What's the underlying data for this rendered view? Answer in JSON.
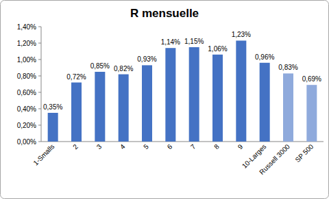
{
  "chart_data": {
    "type": "bar",
    "title": "R mensuelle",
    "categories": [
      "1-Smalls",
      "2",
      "3",
      "4",
      "5",
      "6",
      "7",
      "8",
      "9",
      "10-Larges",
      "Russell 3000",
      "SP 500"
    ],
    "values": [
      0.35,
      0.72,
      0.85,
      0.82,
      0.93,
      1.14,
      1.15,
      1.06,
      1.23,
      0.96,
      0.83,
      0.69
    ],
    "value_labels": [
      "0,35%",
      "0,72%",
      "0,85%",
      "0,82%",
      "0,93%",
      "1,14%",
      "1,15%",
      "1,06%",
      "1,23%",
      "0,96%",
      "0,83%",
      "0,69%"
    ],
    "colors": [
      "#4472c4",
      "#4472c4",
      "#4472c4",
      "#4472c4",
      "#4472c4",
      "#4472c4",
      "#4472c4",
      "#4472c4",
      "#4472c4",
      "#4472c4",
      "#8faadc",
      "#8faadc"
    ],
    "ylim": [
      0,
      1.4
    ],
    "yticks": [
      {
        "value": 0,
        "label": "0,00%"
      },
      {
        "value": 0.2,
        "label": "0,20%"
      },
      {
        "value": 0.4,
        "label": "0,40%"
      },
      {
        "value": 0.6,
        "label": "0,60%"
      },
      {
        "value": 0.8,
        "label": "0,80%"
      },
      {
        "value": 1.0,
        "label": "1,00%"
      },
      {
        "value": 1.2,
        "label": "1,20%"
      },
      {
        "value": 1.4,
        "label": "1,40%"
      }
    ],
    "grid": false,
    "data_labels": true
  }
}
